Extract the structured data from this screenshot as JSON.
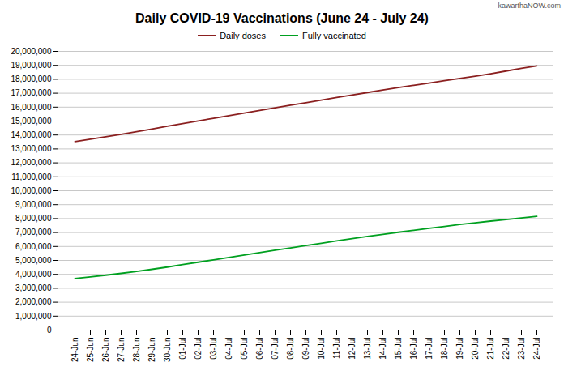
{
  "chart_data": {
    "type": "line",
    "title": "Daily COVID-19 Vaccinations (June 24 - July 24)",
    "annotations": [
      "kawarthaNOW.com"
    ],
    "categories": [
      "24-Jun",
      "25-Jun",
      "26-Jun",
      "27-Jun",
      "28-Jun",
      "29-Jun",
      "30-Jun",
      "01-Jul",
      "02-Jul",
      "03-Jul",
      "04-Jul",
      "05-Jul",
      "06-Jul",
      "07-Jul",
      "08-Jul",
      "09-Jul",
      "10-Jul",
      "11-Jul",
      "12-Jul",
      "13-Jul",
      "14-Jul",
      "15-Jul",
      "16-Jul",
      "17-Jul",
      "18-Jul",
      "19-Jul",
      "20-Jul",
      "21-Jul",
      "22-Jul",
      "23-Jul",
      "24-Jul"
    ],
    "series": [
      {
        "name": "Daily doses",
        "color": "#8B2020",
        "values": [
          13530000,
          13700000,
          13870000,
          14050000,
          14240000,
          14430000,
          14630000,
          14820000,
          15010000,
          15200000,
          15390000,
          15570000,
          15760000,
          15950000,
          16140000,
          16320000,
          16510000,
          16690000,
          16870000,
          17050000,
          17230000,
          17400000,
          17570000,
          17730000,
          17900000,
          18060000,
          18220000,
          18400000,
          18590000,
          18780000,
          18960000
        ]
      },
      {
        "name": "Fully vaccinated",
        "color": "#00A020",
        "values": [
          3700000,
          3820000,
          3940000,
          4070000,
          4210000,
          4360000,
          4520000,
          4700000,
          4870000,
          5040000,
          5210000,
          5380000,
          5560000,
          5730000,
          5900000,
          6070000,
          6230000,
          6400000,
          6560000,
          6720000,
          6870000,
          7020000,
          7160000,
          7300000,
          7440000,
          7580000,
          7700000,
          7820000,
          7930000,
          8040000,
          8160000
        ]
      }
    ],
    "ylim": [
      0,
      20000000
    ],
    "yticks": [
      0,
      {
        "value": 1000000,
        "label": "1,000,000"
      },
      {
        "value": 2000000,
        "label": "2,000,000"
      },
      {
        "value": 3000000,
        "label": "3,000,000"
      },
      {
        "value": 4000000,
        "label": "4,000,000"
      },
      {
        "value": 5000000,
        "label": "5,000,000"
      },
      {
        "value": 6000000,
        "label": "6,000,000"
      },
      {
        "value": 7000000,
        "label": "7,000,000"
      },
      {
        "value": 8000000,
        "label": "8,000,000"
      },
      {
        "value": 9000000,
        "label": "9,000,000"
      },
      {
        "value": 10000000,
        "label": "10,000,000"
      },
      {
        "value": 11000000,
        "label": "11,000,000"
      },
      {
        "value": 12000000,
        "label": "12,000,000"
      },
      {
        "value": 13000000,
        "label": "13,000,000"
      },
      {
        "value": 14000000,
        "label": "14,000,000"
      },
      {
        "value": 15000000,
        "label": "15,000,000"
      },
      {
        "value": 16000000,
        "label": "16,000,000"
      },
      {
        "value": 17000000,
        "label": "17,000,000"
      },
      {
        "value": 18000000,
        "label": "18,000,000"
      },
      {
        "value": 19000000,
        "label": "19,000,000"
      },
      {
        "value": 20000000,
        "label": "20,000,000"
      }
    ],
    "grid": true,
    "legend": "top"
  }
}
